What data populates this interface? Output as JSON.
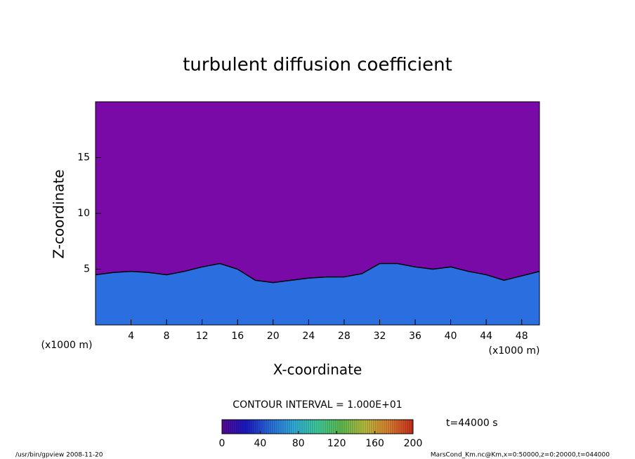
{
  "chart_data": {
    "type": "contour",
    "title": "turbulent diffusion coefficient",
    "x_label": "X-coordinate",
    "y_label": "Z-coordinate",
    "x_unit_label": "(x1000 m)",
    "y_unit_label": "(x1000 m)",
    "xlim": [
      0,
      50
    ],
    "ylim": [
      0,
      20
    ],
    "xticks": [
      4,
      8,
      12,
      16,
      20,
      24,
      28,
      32,
      36,
      40,
      44,
      48
    ],
    "yticks": [
      5,
      10,
      15
    ],
    "x": [
      0,
      2,
      4,
      6,
      8,
      10,
      12,
      14,
      16,
      18,
      20,
      22,
      24,
      26,
      28,
      30,
      32,
      34,
      36,
      38,
      40,
      42,
      44,
      46,
      48,
      50
    ],
    "values": [
      4.5,
      4.7,
      4.8,
      4.7,
      4.5,
      4.8,
      5.2,
      5.5,
      5.0,
      4.0,
      3.8,
      4.0,
      4.2,
      4.3,
      4.3,
      4.6,
      5.5,
      5.5,
      5.2,
      5.0,
      5.2,
      4.8,
      4.5,
      4.0,
      4.4,
      4.8
    ],
    "color": "#2a6ee0",
    "background_color": "#7a0aa8",
    "contour_interval_label": "CONTOUR INTERVAL = 1.000E+01",
    "time_label": "t=44000 s",
    "colorbar": {
      "lim": [
        0,
        200
      ],
      "ticks": [
        0,
        40,
        80,
        120,
        160,
        200
      ],
      "colors": [
        "#5a0a9a",
        "#1a1ac8",
        "#2a6ee0",
        "#30b0e0",
        "#40d0a0",
        "#60c050",
        "#c0c040",
        "#e08030",
        "#d03020"
      ]
    },
    "footer_left": "/usr/bin/gpview  2008-11-20",
    "footer_right": "MarsCond_Km.nc@Km,x=0:50000,z=0:20000,t=044000"
  }
}
